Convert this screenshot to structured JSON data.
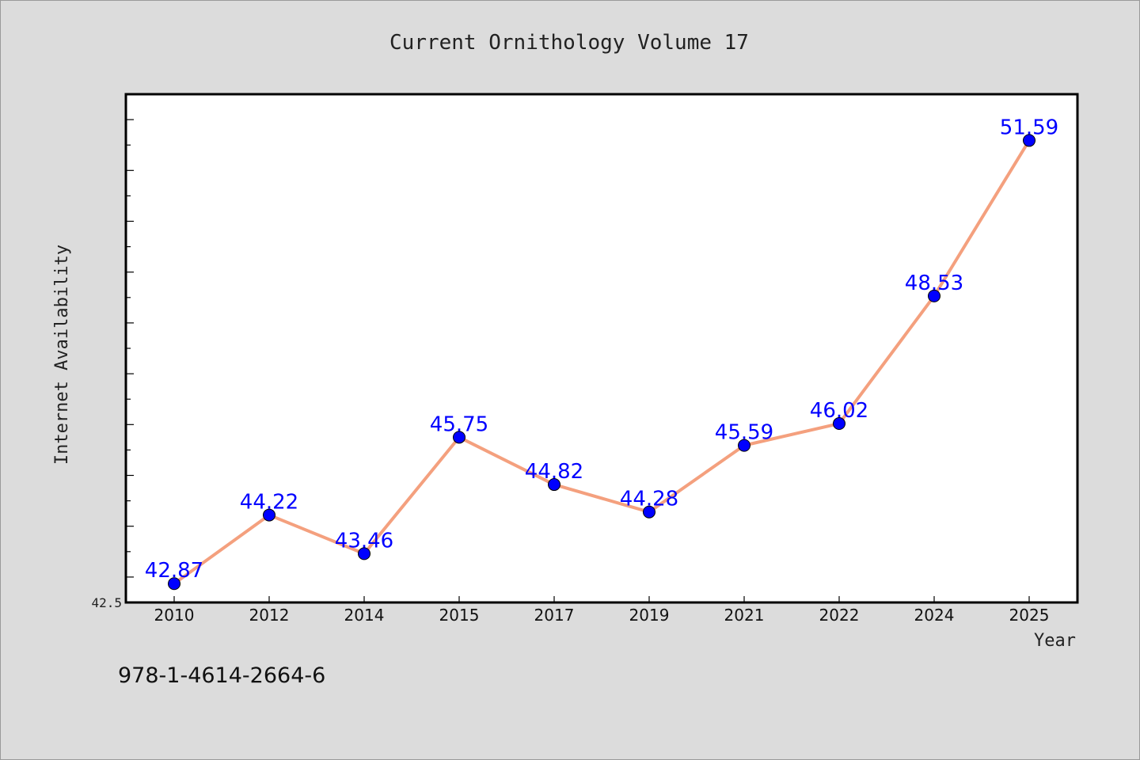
{
  "chart_data": {
    "type": "line",
    "title": "Current Ornithology Volume 17",
    "xlabel": "Year",
    "ylabel": "Internet Availability",
    "categories": [
      "2010",
      "2012",
      "2014",
      "2015",
      "2017",
      "2019",
      "2021",
      "2022",
      "2024",
      "2025"
    ],
    "series": [
      {
        "values": [
          42.87,
          44.22,
          43.46,
          45.75,
          44.82,
          44.28,
          45.59,
          46.02,
          48.53,
          51.59
        ],
        "value_labels": [
          "42.87",
          "44.22",
          "43.46",
          "45.75",
          "44.82",
          "44.28",
          "45.59",
          "46.02",
          "48.53",
          "51.59"
        ]
      }
    ],
    "ylim": [
      42.5,
      52.5
    ],
    "y_tick_label": "42.5",
    "grid": false,
    "legend": "none",
    "colors": {
      "line": "#f4a07e",
      "marker": "#0000ff",
      "value_label": "#0000ff",
      "background": "#dcdcdc",
      "plot_bg": "#ffffff"
    }
  },
  "footer": {
    "isbn": "978-1-4614-2664-6"
  }
}
